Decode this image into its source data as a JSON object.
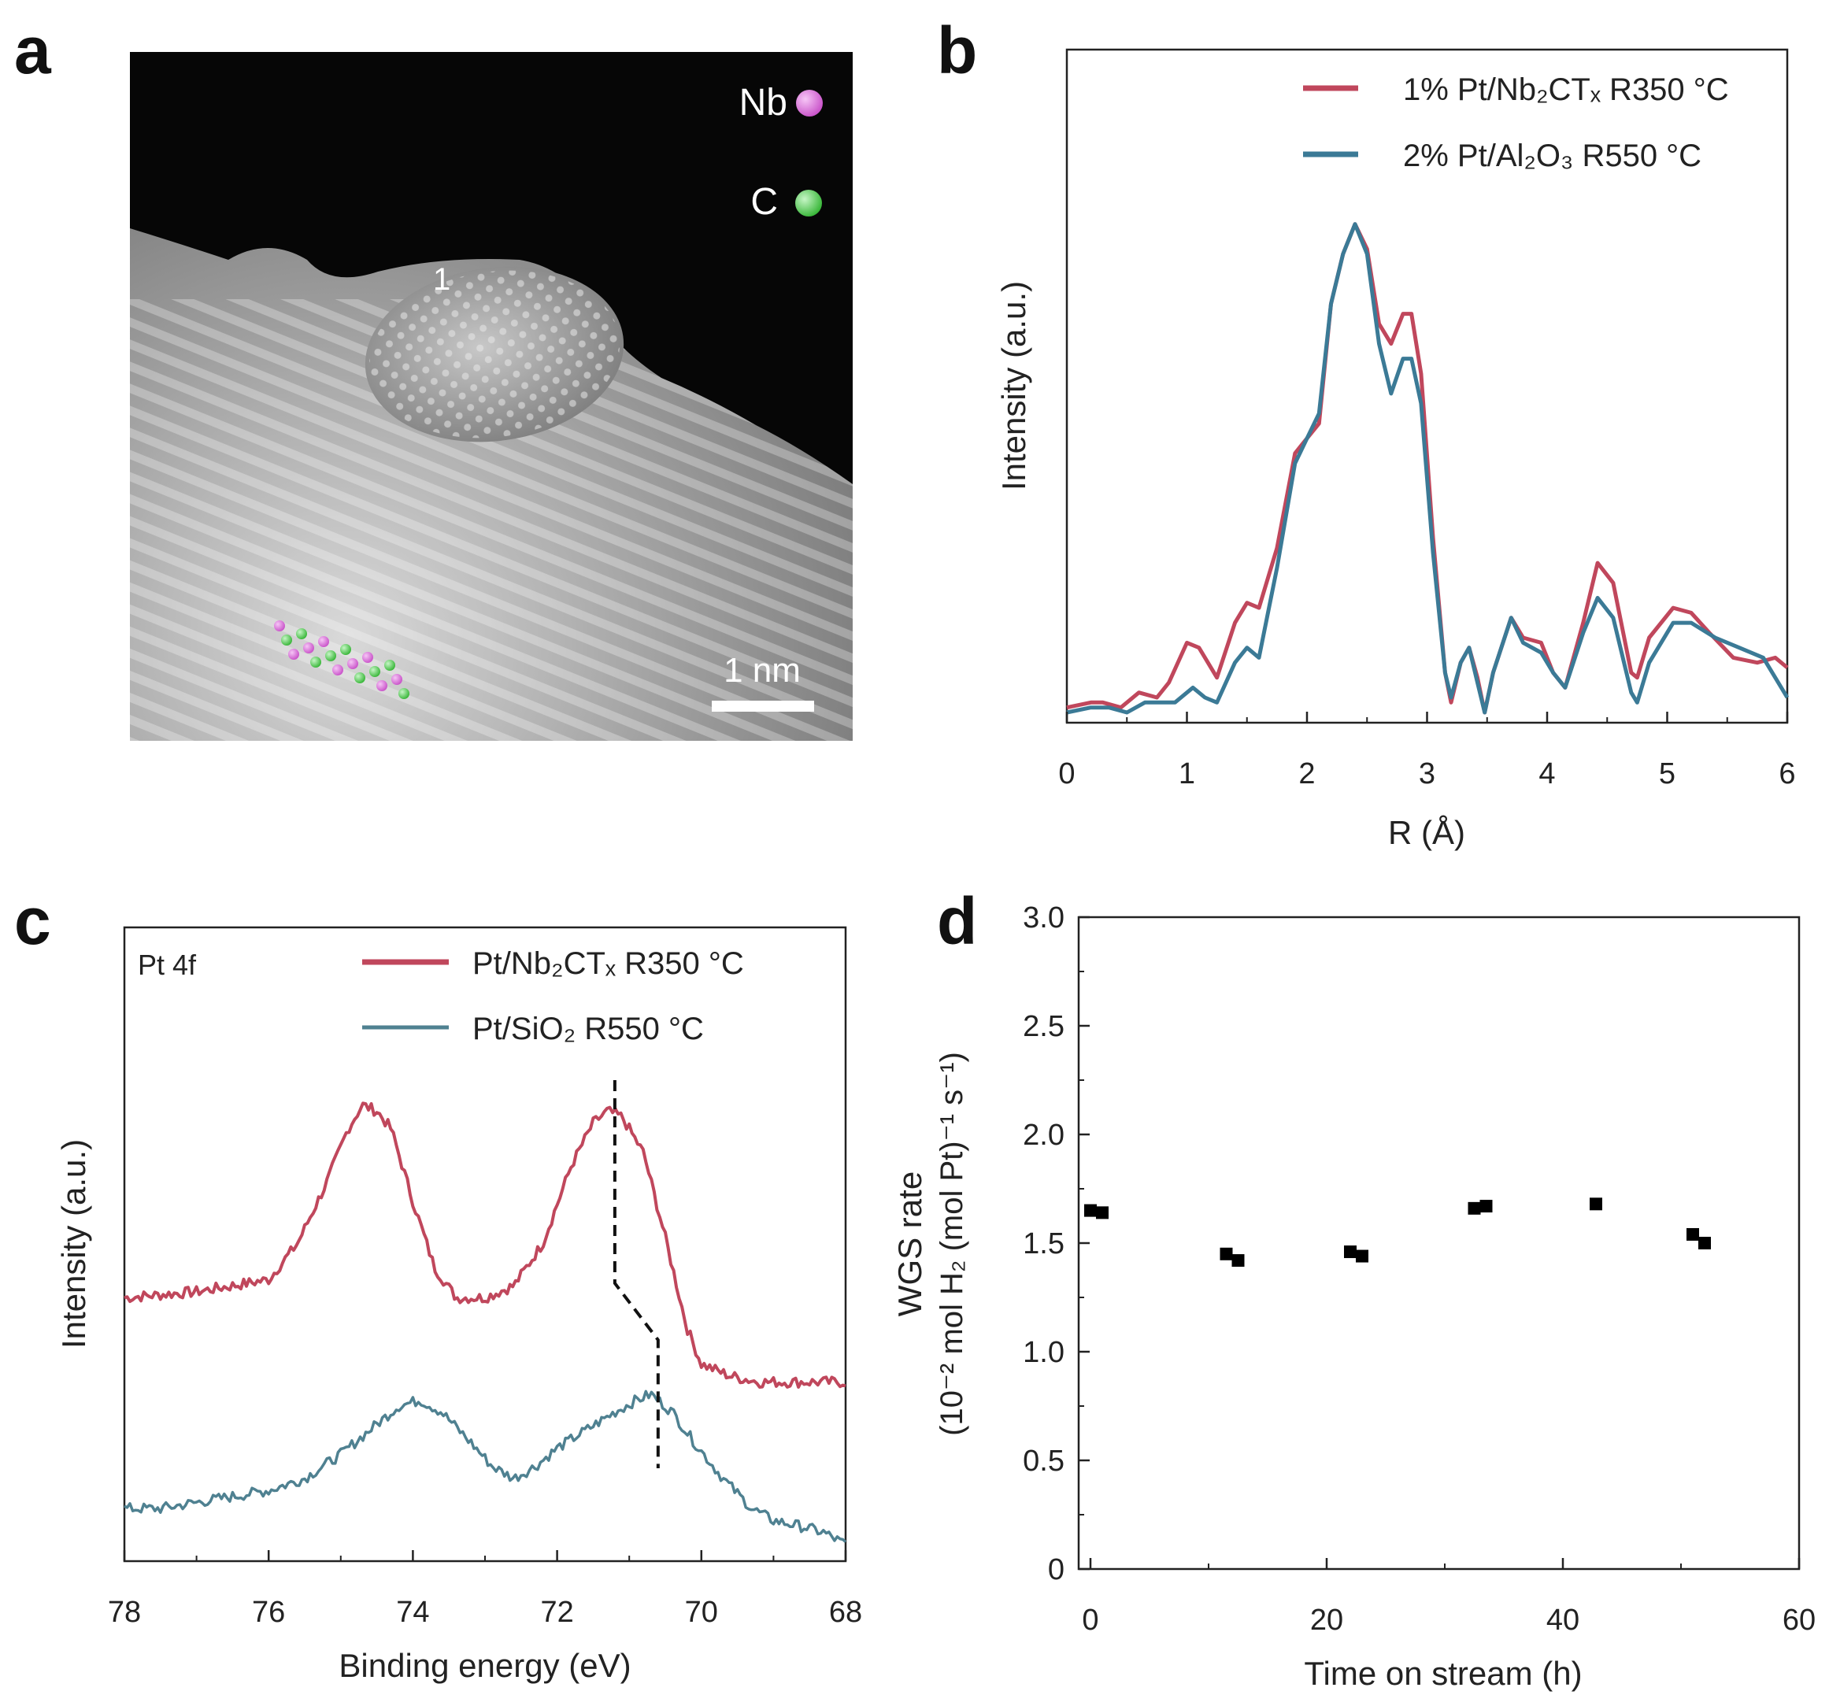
{
  "panels": {
    "a": {
      "letter": "a"
    },
    "b": {
      "letter": "b"
    },
    "c": {
      "letter": "c"
    },
    "d": {
      "letter": "d"
    }
  },
  "micrograph": {
    "particle_label": "1",
    "legend": [
      {
        "label": "Nb",
        "color": "#dd77dd"
      },
      {
        "label": "C",
        "color": "#55d855"
      }
    ],
    "scale_bar_label": "1 nm"
  },
  "chart_data": [
    {
      "panel": "b",
      "type": "line",
      "xlabel": "R (Å)",
      "ylabel": "Intensity (a.u.)",
      "xlim": [
        0,
        6
      ],
      "ylim": [
        0,
        1.0
      ],
      "xticks": [
        "0",
        "1",
        "2",
        "3",
        "4",
        "5",
        "6"
      ],
      "legend_position": "top-right",
      "series": [
        {
          "name": "1% Pt/Nb₂CTₓ R350 °C",
          "color": "#c0475c",
          "points": [
            [
              0,
              0.01
            ],
            [
              0.2,
              0.02
            ],
            [
              0.3,
              0.02
            ],
            [
              0.45,
              0.01
            ],
            [
              0.6,
              0.04
            ],
            [
              0.75,
              0.03
            ],
            [
              0.85,
              0.06
            ],
            [
              1.0,
              0.14
            ],
            [
              1.1,
              0.13
            ],
            [
              1.25,
              0.07
            ],
            [
              1.4,
              0.18
            ],
            [
              1.5,
              0.22
            ],
            [
              1.6,
              0.21
            ],
            [
              1.75,
              0.33
            ],
            [
              1.9,
              0.52
            ],
            [
              2.0,
              0.55
            ],
            [
              2.1,
              0.58
            ],
            [
              2.2,
              0.82
            ],
            [
              2.3,
              0.92
            ],
            [
              2.4,
              0.98
            ],
            [
              2.5,
              0.93
            ],
            [
              2.6,
              0.78
            ],
            [
              2.7,
              0.74
            ],
            [
              2.8,
              0.8
            ],
            [
              2.87,
              0.8
            ],
            [
              2.95,
              0.68
            ],
            [
              3.05,
              0.35
            ],
            [
              3.15,
              0.08
            ],
            [
              3.2,
              0.02
            ],
            [
              3.28,
              0.1
            ],
            [
              3.35,
              0.13
            ],
            [
              3.42,
              0.07
            ],
            [
              3.48,
              0.0
            ],
            [
              3.55,
              0.08
            ],
            [
              3.7,
              0.19
            ],
            [
              3.8,
              0.15
            ],
            [
              3.95,
              0.14
            ],
            [
              4.05,
              0.08
            ],
            [
              4.15,
              0.05
            ],
            [
              4.3,
              0.18
            ],
            [
              4.42,
              0.3
            ],
            [
              4.55,
              0.26
            ],
            [
              4.7,
              0.08
            ],
            [
              4.75,
              0.07
            ],
            [
              4.85,
              0.15
            ],
            [
              5.05,
              0.21
            ],
            [
              5.2,
              0.2
            ],
            [
              5.35,
              0.16
            ],
            [
              5.55,
              0.11
            ],
            [
              5.75,
              0.1
            ],
            [
              5.9,
              0.11
            ],
            [
              6.0,
              0.09
            ]
          ]
        },
        {
          "name": "2% Pt/Al₂O₃ R550 °C",
          "color": "#3b7a96",
          "points": [
            [
              0,
              0.0
            ],
            [
              0.2,
              0.01
            ],
            [
              0.35,
              0.01
            ],
            [
              0.5,
              0.0
            ],
            [
              0.65,
              0.02
            ],
            [
              0.8,
              0.02
            ],
            [
              0.9,
              0.02
            ],
            [
              1.05,
              0.05
            ],
            [
              1.15,
              0.03
            ],
            [
              1.25,
              0.02
            ],
            [
              1.4,
              0.1
            ],
            [
              1.5,
              0.13
            ],
            [
              1.6,
              0.11
            ],
            [
              1.75,
              0.29
            ],
            [
              1.9,
              0.5
            ],
            [
              2.0,
              0.55
            ],
            [
              2.1,
              0.6
            ],
            [
              2.2,
              0.82
            ],
            [
              2.3,
              0.92
            ],
            [
              2.4,
              0.98
            ],
            [
              2.5,
              0.92
            ],
            [
              2.6,
              0.74
            ],
            [
              2.7,
              0.64
            ],
            [
              2.8,
              0.71
            ],
            [
              2.87,
              0.71
            ],
            [
              2.95,
              0.62
            ],
            [
              3.05,
              0.32
            ],
            [
              3.15,
              0.08
            ],
            [
              3.2,
              0.03
            ],
            [
              3.28,
              0.1
            ],
            [
              3.35,
              0.13
            ],
            [
              3.42,
              0.06
            ],
            [
              3.48,
              0.0
            ],
            [
              3.55,
              0.08
            ],
            [
              3.7,
              0.19
            ],
            [
              3.8,
              0.14
            ],
            [
              3.95,
              0.12
            ],
            [
              4.05,
              0.08
            ],
            [
              4.15,
              0.05
            ],
            [
              4.3,
              0.16
            ],
            [
              4.42,
              0.23
            ],
            [
              4.55,
              0.19
            ],
            [
              4.7,
              0.04
            ],
            [
              4.75,
              0.02
            ],
            [
              4.85,
              0.1
            ],
            [
              5.05,
              0.18
            ],
            [
              5.2,
              0.18
            ],
            [
              5.4,
              0.15
            ],
            [
              5.6,
              0.13
            ],
            [
              5.8,
              0.11
            ],
            [
              6.0,
              0.03
            ]
          ]
        }
      ]
    },
    {
      "panel": "c",
      "type": "line",
      "annotation": "Pt 4f",
      "xlabel": "Binding energy (eV)",
      "ylabel": "Intensity (a.u.)",
      "xlim": [
        78,
        68
      ],
      "ylim": [
        0,
        1.0
      ],
      "xticks": [
        "78",
        "76",
        "74",
        "72",
        "70",
        "68"
      ],
      "legend_position": "top-center",
      "dashed_marker": {
        "upper_x": 71.2,
        "lower_x": 70.6
      },
      "series": [
        {
          "name": "Pt/Nb₂CTₓ R350 °C",
          "color": "#c0475c",
          "points": [
            [
              78,
              0.44
            ],
            [
              77,
              0.45
            ],
            [
              76.5,
              0.46
            ],
            [
              76,
              0.47
            ],
            [
              75.6,
              0.53
            ],
            [
              75.2,
              0.63
            ],
            [
              74.9,
              0.72
            ],
            [
              74.7,
              0.76
            ],
            [
              74.5,
              0.75
            ],
            [
              74.3,
              0.72
            ],
            [
              74.0,
              0.6
            ],
            [
              73.7,
              0.49
            ],
            [
              73.4,
              0.44
            ],
            [
              73.0,
              0.44
            ],
            [
              72.6,
              0.46
            ],
            [
              72.2,
              0.53
            ],
            [
              71.8,
              0.66
            ],
            [
              71.5,
              0.73
            ],
            [
              71.3,
              0.75
            ],
            [
              71.1,
              0.74
            ],
            [
              70.8,
              0.68
            ],
            [
              70.5,
              0.54
            ],
            [
              70.2,
              0.39
            ],
            [
              70.0,
              0.33
            ],
            [
              69.6,
              0.31
            ],
            [
              69.2,
              0.3
            ],
            [
              68.8,
              0.3
            ],
            [
              68.4,
              0.3
            ],
            [
              68,
              0.3
            ]
          ]
        },
        {
          "name": "Pt/SiO₂ R550 °C",
          "color": "#4f8191",
          "points": [
            [
              78,
              0.09
            ],
            [
              77.5,
              0.09
            ],
            [
              77,
              0.1
            ],
            [
              76.5,
              0.11
            ],
            [
              76,
              0.12
            ],
            [
              75.5,
              0.14
            ],
            [
              75.0,
              0.18
            ],
            [
              74.5,
              0.23
            ],
            [
              74.2,
              0.26
            ],
            [
              73.9,
              0.27
            ],
            [
              73.6,
              0.25
            ],
            [
              73.2,
              0.2
            ],
            [
              72.9,
              0.16
            ],
            [
              72.6,
              0.14
            ],
            [
              72.3,
              0.16
            ],
            [
              72.0,
              0.19
            ],
            [
              71.6,
              0.22
            ],
            [
              71.2,
              0.25
            ],
            [
              70.9,
              0.27
            ],
            [
              70.7,
              0.28
            ],
            [
              70.4,
              0.25
            ],
            [
              70.1,
              0.2
            ],
            [
              69.7,
              0.14
            ],
            [
              69.3,
              0.09
            ],
            [
              69.0,
              0.07
            ],
            [
              68.6,
              0.06
            ],
            [
              68.3,
              0.05
            ],
            [
              68,
              0.03
            ]
          ]
        }
      ]
    },
    {
      "panel": "d",
      "type": "scatter",
      "xlabel": "Time on stream (h)",
      "ylabel_line1": "WGS rate",
      "ylabel_line2": "(10⁻² mol H₂ (mol Pt)⁻¹ s⁻¹)",
      "xlim": [
        -1,
        60
      ],
      "ylim": [
        0,
        3.0
      ],
      "xticks": [
        "0",
        "20",
        "40",
        "60"
      ],
      "yticks": [
        "0",
        "0.5",
        "1.0",
        "1.5",
        "2.0",
        "2.5",
        "3.0"
      ],
      "grid": false,
      "series": [
        {
          "color": "#000000",
          "points": [
            [
              0,
              1.65
            ],
            [
              1,
              1.64
            ],
            [
              11.5,
              1.45
            ],
            [
              12.5,
              1.42
            ],
            [
              22,
              1.46
            ],
            [
              23,
              1.44
            ],
            [
              32.5,
              1.66
            ],
            [
              33.5,
              1.67
            ],
            [
              42.8,
              1.68
            ],
            [
              51,
              1.54
            ],
            [
              52,
              1.5
            ]
          ]
        }
      ]
    }
  ]
}
